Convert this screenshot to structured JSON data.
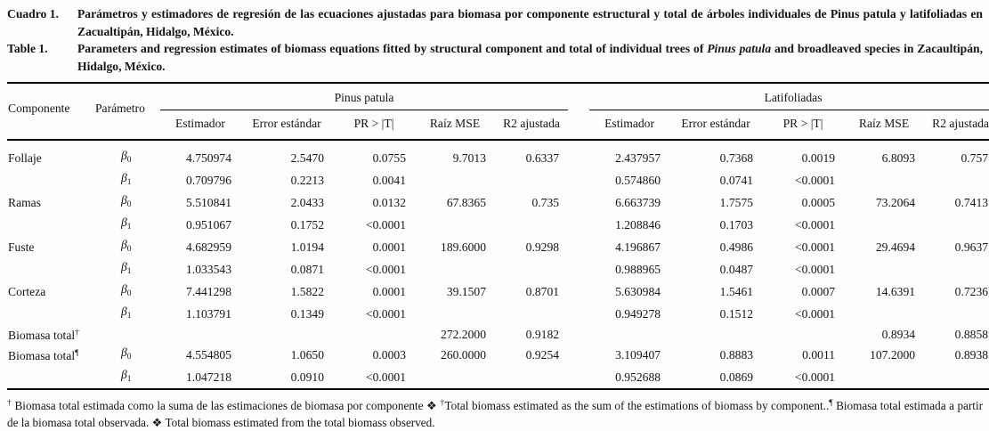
{
  "captions": {
    "es": {
      "label": "Cuadro 1.",
      "text": "Parámetros y estimadores de regresión de las ecuaciones ajustadas para biomasa por componente estructural y total de árboles individuales de Pinus patula y latifoliadas en Zacualtipán, Hidalgo, México."
    },
    "en": {
      "label": "Table 1.",
      "text_before_italic": "Parameters and regression estimates of biomass equations fitted by structural component and total of individual trees of ",
      "italic": "Pinus patula",
      "text_after_italic": " and broadleaved species in Zacaultipán, Hidalgo, México."
    }
  },
  "table": {
    "row_header_columns": {
      "component": "Componente",
      "parameter": "Parámetro"
    },
    "groups": [
      {
        "label": "Pinus patula",
        "columns": [
          "Estimador",
          "Error estándar",
          "PR > |T|",
          "Raíz MSE",
          "R2 ajustada"
        ]
      },
      {
        "label": "Latifoliadas",
        "columns": [
          "Estimador",
          "Error estándar",
          "PR > |T|",
          "Raíz MSE",
          "R2 ajustada"
        ]
      }
    ],
    "rows": [
      {
        "component": "Follaje",
        "sup": "",
        "param": "β0",
        "pinus": [
          "4.750974",
          "2.5470",
          "0.0755",
          "9.7013",
          "0.6337"
        ],
        "lati": [
          "2.437957",
          "0.7368",
          "0.0019",
          "6.8093",
          "0.757"
        ]
      },
      {
        "component": "",
        "sup": "",
        "param": "β1",
        "pinus": [
          "0.709796",
          "0.2213",
          "0.0041",
          "",
          ""
        ],
        "lati": [
          "0.574860",
          "0.0741",
          "<0.0001",
          "",
          ""
        ]
      },
      {
        "component": "Ramas",
        "sup": "",
        "param": "β0",
        "pinus": [
          "5.510841",
          "2.0433",
          "0.0132",
          "67.8365",
          "0.735"
        ],
        "lati": [
          "6.663739",
          "1.7575",
          "0.0005",
          "73.2064",
          "0.7413"
        ]
      },
      {
        "component": "",
        "sup": "",
        "param": "β1",
        "pinus": [
          "0.951067",
          "0.1752",
          "<0.0001",
          "",
          ""
        ],
        "lati": [
          "1.208846",
          "0.1703",
          "<0.0001",
          "",
          ""
        ]
      },
      {
        "component": "Fuste",
        "sup": "",
        "param": "β0",
        "pinus": [
          "4.682959",
          "1.0194",
          "0.0001",
          "189.6000",
          "0.9298"
        ],
        "lati": [
          "4.196867",
          "0.4986",
          "<0.0001",
          "29.4694",
          "0.9637"
        ]
      },
      {
        "component": "",
        "sup": "",
        "param": "β1",
        "pinus": [
          "1.033543",
          "0.0871",
          "<0.0001",
          "",
          ""
        ],
        "lati": [
          "0.988965",
          "0.0487",
          "<0.0001",
          "",
          ""
        ]
      },
      {
        "component": "Corteza",
        "sup": "",
        "param": "β0",
        "pinus": [
          "7.441298",
          "1.5822",
          "0.0001",
          "39.1507",
          "0.8701"
        ],
        "lati": [
          "5.630984",
          "1.5461",
          "0.0007",
          "14.6391",
          "0.7236"
        ]
      },
      {
        "component": "",
        "sup": "",
        "param": "β1",
        "pinus": [
          "1.103791",
          "0.1349",
          "<0.0001",
          "",
          ""
        ],
        "lati": [
          "0.949278",
          "0.1512",
          "<0.0001",
          "",
          ""
        ]
      },
      {
        "component": "Biomasa total",
        "sup": "†",
        "param": "",
        "pinus": [
          "",
          "",
          "",
          "272.2000",
          "0.9182"
        ],
        "lati": [
          "",
          "",
          "",
          "0.8934",
          "0.8858"
        ]
      },
      {
        "component": "Biomasa total",
        "sup": "¶",
        "param": "β0",
        "pinus": [
          "4.554805",
          "1.0650",
          "0.0003",
          "260.0000",
          "0.9254"
        ],
        "lati": [
          "3.109407",
          "0.8883",
          "0.0011",
          "107.2000",
          "0.8938"
        ]
      },
      {
        "component": "",
        "sup": "",
        "param": "β1",
        "pinus": [
          "1.047218",
          "0.0910",
          "<0.0001",
          "",
          ""
        ],
        "lati": [
          "0.952688",
          "0.0869",
          "<0.0001",
          "",
          ""
        ]
      }
    ]
  },
  "footnote": {
    "segments": [
      {
        "sup": "†"
      },
      {
        "text": " Biomasa total estimada como la suma de las estimaciones de biomasa por componente ❖ "
      },
      {
        "sup": "†"
      },
      {
        "text": "Total biomass estimated as the sum of the estimations of biomass by component.."
      },
      {
        "sup": "¶"
      },
      {
        "text": " Biomasa total estimada a partir de la biomasa total observada. ❖ Total biomass estimated from the total biomass observed."
      }
    ]
  }
}
